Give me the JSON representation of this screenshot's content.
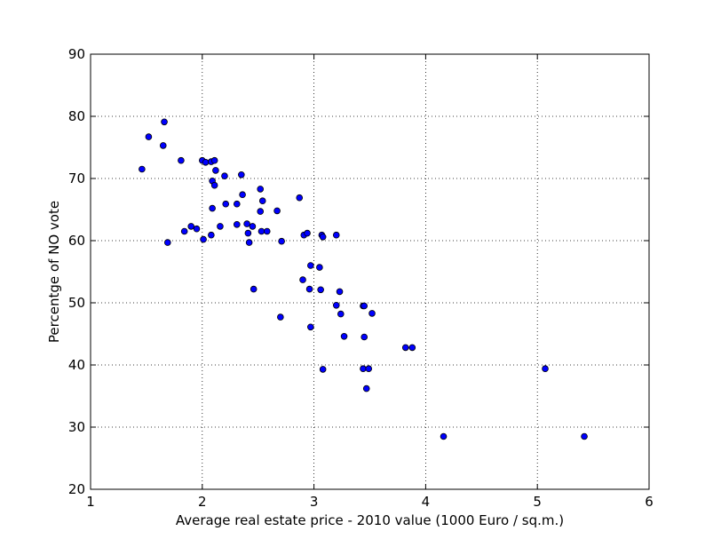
{
  "chart_data": {
    "type": "scatter",
    "title": "",
    "xlabel": "Average real estate price - 2010 value (1000 Euro / sq.m.)",
    "ylabel": "Percentge of NO vote",
    "xlim": [
      1,
      6
    ],
    "ylim": [
      20,
      90
    ],
    "xticks": [
      1,
      2,
      3,
      4,
      5,
      6
    ],
    "yticks": [
      20,
      30,
      40,
      50,
      60,
      70,
      80,
      90
    ],
    "grid": true,
    "marker_color": "#0000ff",
    "marker_edge_color": "#000000",
    "points": [
      [
        1.46,
        71.5
      ],
      [
        1.52,
        76.7
      ],
      [
        1.65,
        75.3
      ],
      [
        1.66,
        79.1
      ],
      [
        1.69,
        59.7
      ],
      [
        1.81,
        72.9
      ],
      [
        1.84,
        61.5
      ],
      [
        1.9,
        62.3
      ],
      [
        1.95,
        61.9
      ],
      [
        2.0,
        72.9
      ],
      [
        2.01,
        60.2
      ],
      [
        2.03,
        72.6
      ],
      [
        2.08,
        72.7
      ],
      [
        2.08,
        60.9
      ],
      [
        2.09,
        65.2
      ],
      [
        2.09,
        69.6
      ],
      [
        2.11,
        68.9
      ],
      [
        2.11,
        72.9
      ],
      [
        2.12,
        71.3
      ],
      [
        2.16,
        62.3
      ],
      [
        2.2,
        70.4
      ],
      [
        2.21,
        65.9
      ],
      [
        2.31,
        65.9
      ],
      [
        2.31,
        62.6
      ],
      [
        2.35,
        70.6
      ],
      [
        2.36,
        67.4
      ],
      [
        2.4,
        62.7
      ],
      [
        2.41,
        61.2
      ],
      [
        2.42,
        59.7
      ],
      [
        2.45,
        62.3
      ],
      [
        2.46,
        52.2
      ],
      [
        2.52,
        68.3
      ],
      [
        2.52,
        64.7
      ],
      [
        2.53,
        61.5
      ],
      [
        2.54,
        66.4
      ],
      [
        2.58,
        61.5
      ],
      [
        2.67,
        64.8
      ],
      [
        2.7,
        47.7
      ],
      [
        2.71,
        59.9
      ],
      [
        2.87,
        66.9
      ],
      [
        2.9,
        53.7
      ],
      [
        2.91,
        60.9
      ],
      [
        2.94,
        61.2
      ],
      [
        2.96,
        52.2
      ],
      [
        2.97,
        56.0
      ],
      [
        2.97,
        46.1
      ],
      [
        3.05,
        55.7
      ],
      [
        3.06,
        52.1
      ],
      [
        3.07,
        60.9
      ],
      [
        3.08,
        60.6
      ],
      [
        3.08,
        39.3
      ],
      [
        3.2,
        60.9
      ],
      [
        3.2,
        49.6
      ],
      [
        3.23,
        51.8
      ],
      [
        3.24,
        48.2
      ],
      [
        3.27,
        44.6
      ],
      [
        3.44,
        49.5
      ],
      [
        3.45,
        49.5
      ],
      [
        3.44,
        39.4
      ],
      [
        3.45,
        44.5
      ],
      [
        3.47,
        36.2
      ],
      [
        3.49,
        39.4
      ],
      [
        3.52,
        48.3
      ],
      [
        3.82,
        42.8
      ],
      [
        3.88,
        42.8
      ],
      [
        4.16,
        28.5
      ],
      [
        5.07,
        39.4
      ],
      [
        5.42,
        28.5
      ]
    ]
  }
}
